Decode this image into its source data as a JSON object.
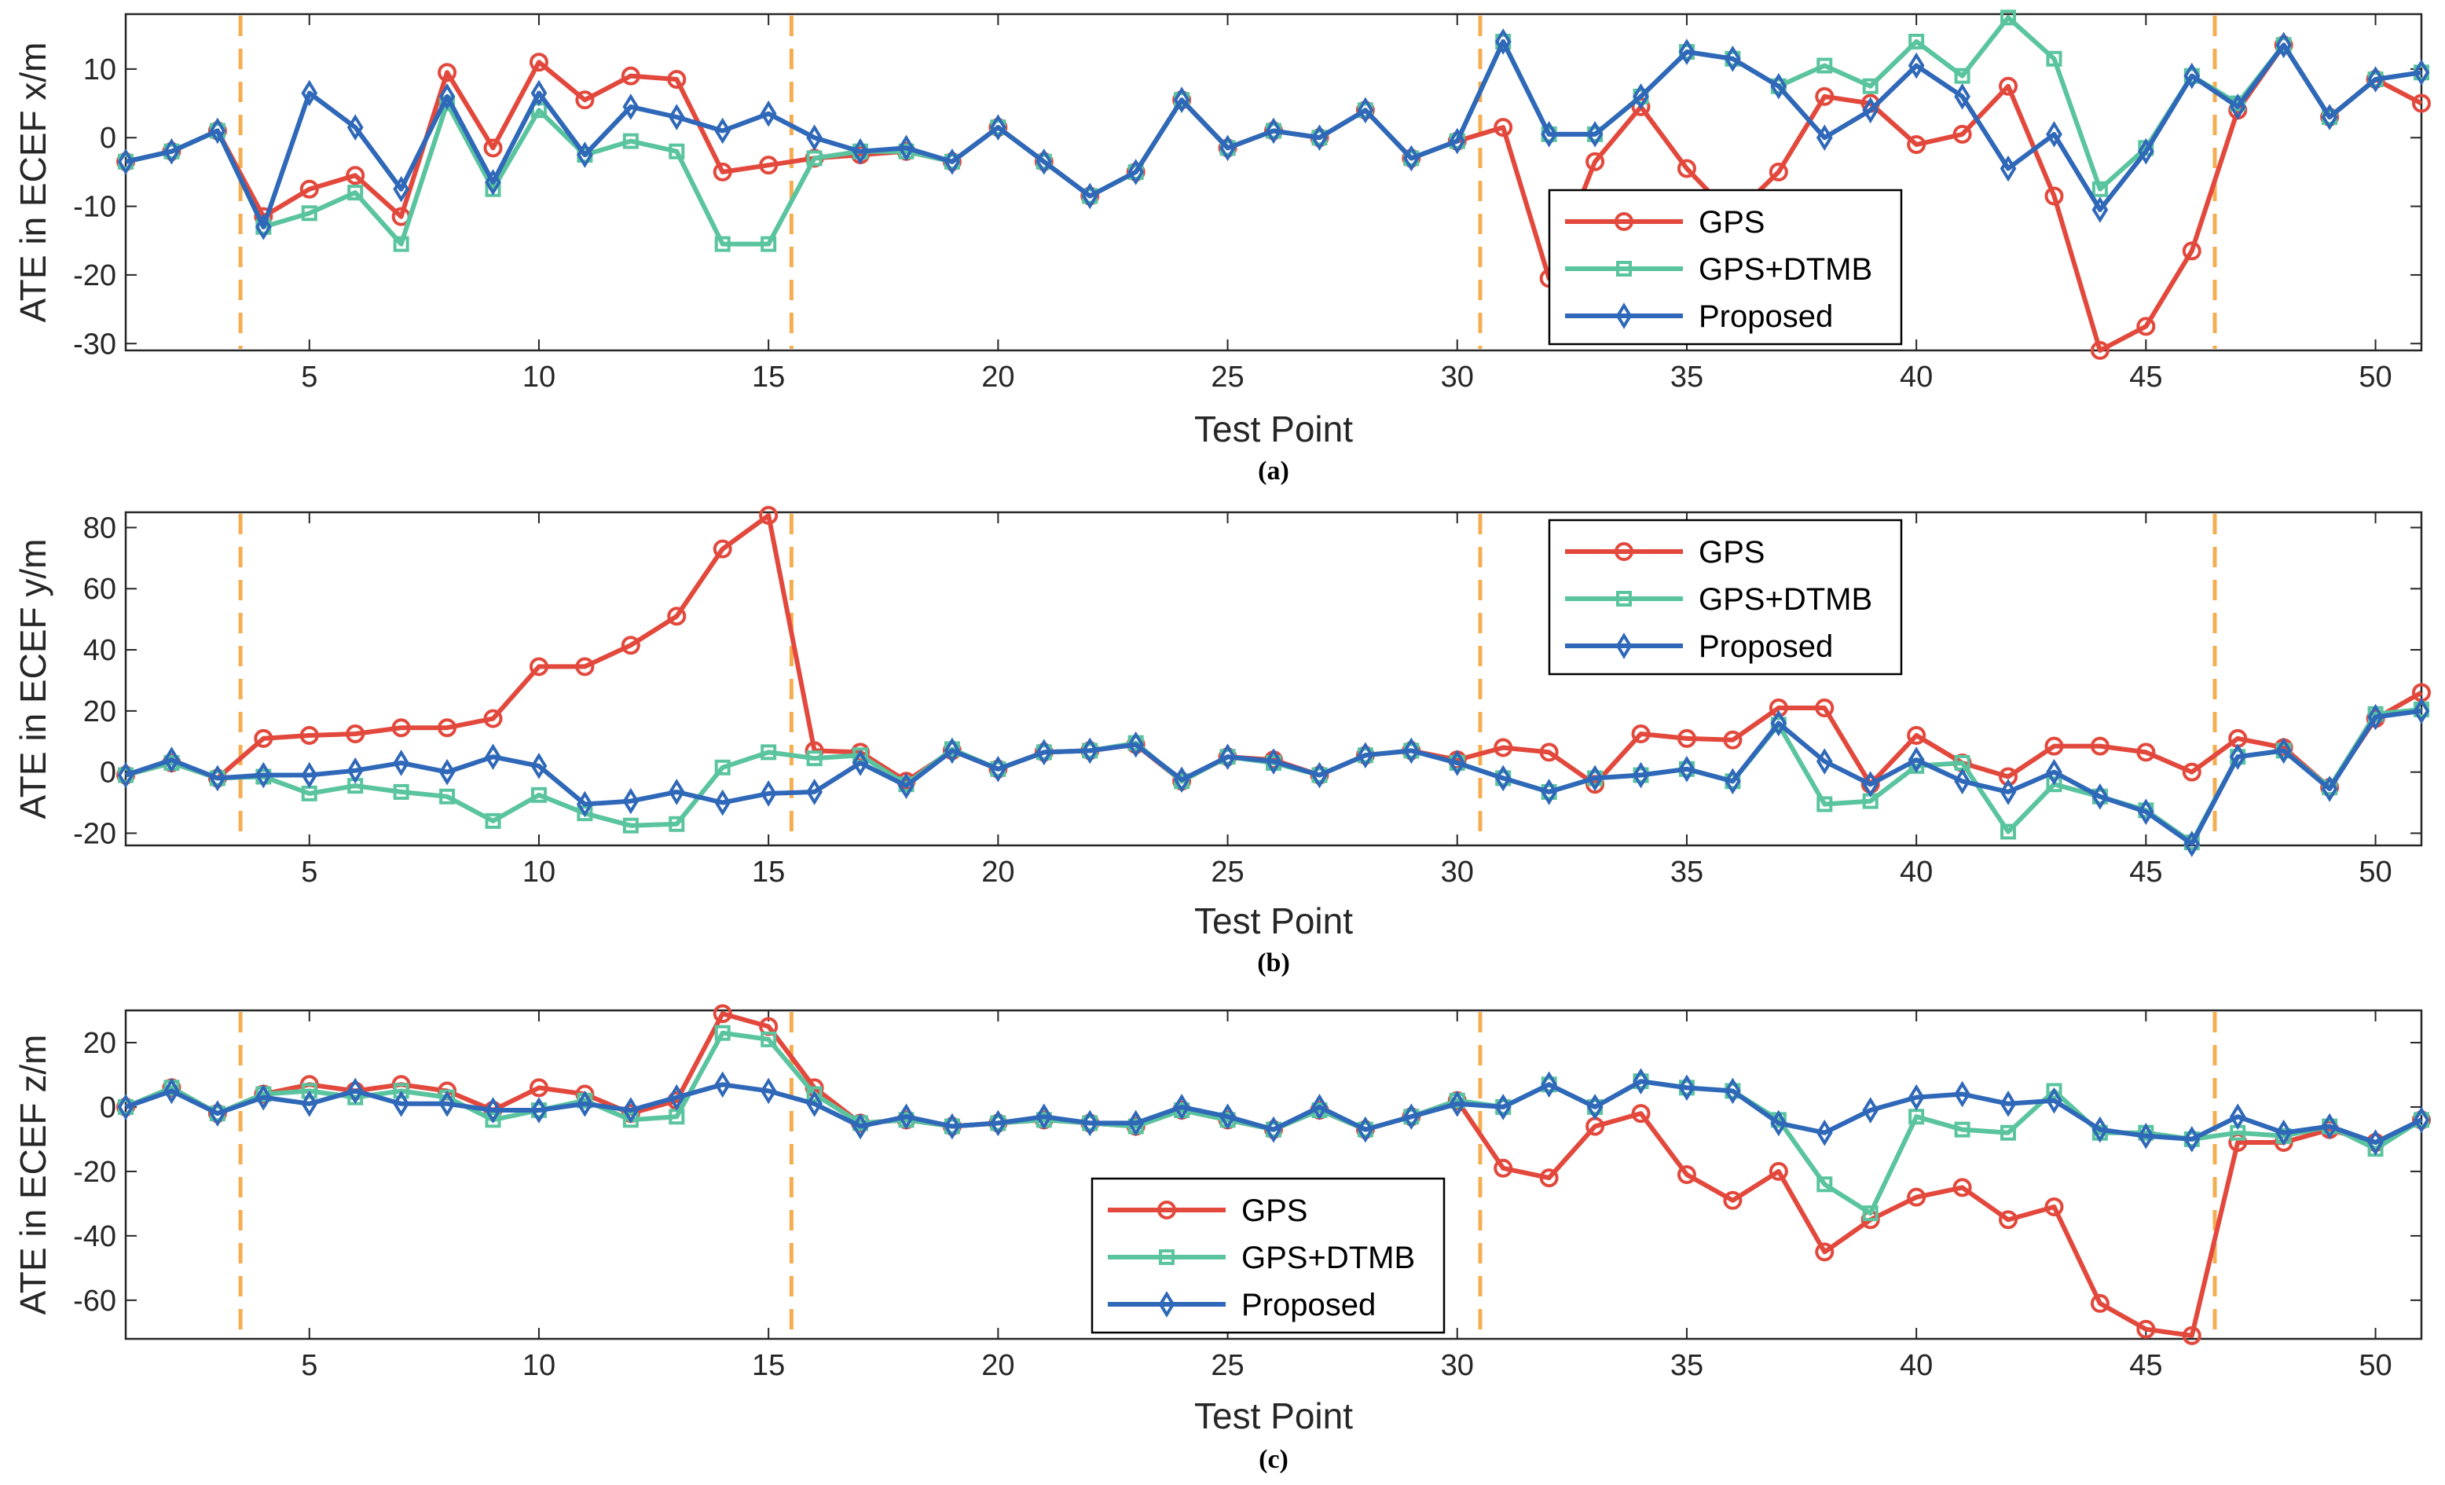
{
  "chart_data": [
    {
      "type": "line",
      "panel_label": "(a)",
      "xlabel": "Test Point",
      "ylabel": "ATE in ECEF x/m",
      "xlim": [
        1,
        51
      ],
      "ylim": [
        -31,
        18
      ],
      "xticks": [
        5,
        10,
        15,
        20,
        25,
        30,
        35,
        40,
        45,
        50
      ],
      "yticks": [
        -30,
        -20,
        -10,
        0,
        10
      ],
      "legend_position": "center-right",
      "x": [
        1,
        2,
        3,
        4,
        5,
        6,
        7,
        8,
        9,
        10,
        11,
        12,
        13,
        14,
        15,
        16,
        17,
        18,
        19,
        20,
        21,
        22,
        23,
        24,
        25,
        26,
        27,
        28,
        29,
        30,
        31,
        32,
        33,
        34,
        35,
        36,
        37,
        38,
        39,
        40,
        41,
        42,
        43,
        44,
        45,
        46,
        47,
        48,
        49,
        50,
        51
      ],
      "series": [
        {
          "name": "GPS",
          "color": "#e2483c",
          "marker": "circle",
          "values": [
            -3.5,
            -2,
            1,
            -11.5,
            -7.5,
            -5.5,
            -11.5,
            9.5,
            -1.5,
            11,
            5.5,
            9,
            8.5,
            -5,
            -4,
            -3,
            -2.5,
            -2,
            -3.5,
            1.5,
            -3.5,
            -8.5,
            -5,
            5.5,
            -1.5,
            1,
            0,
            4,
            -3,
            -0.5,
            1.5,
            -20.5,
            -3.5,
            4.5,
            -4.5,
            -11.5,
            -5,
            6,
            5,
            -1,
            0.5,
            7.5,
            -8.5,
            -31,
            -27.5,
            -16.5,
            4,
            13.5,
            3,
            8.5,
            5
          ]
        },
        {
          "name": "GPS+DTMB",
          "color": "#5ac49f",
          "marker": "square",
          "values": [
            -3.5,
            -2,
            1,
            -13,
            -11,
            -8,
            -15.5,
            5,
            -7.5,
            4,
            -2.5,
            -0.5,
            -2,
            -15.5,
            -15.5,
            -3,
            -2,
            -2,
            -3.5,
            1.5,
            -3.5,
            -8.5,
            -5,
            5.5,
            -1.5,
            1,
            0,
            4,
            -3,
            -0.5,
            14,
            0.5,
            0.5,
            6,
            12.5,
            11.5,
            7.5,
            10.5,
            7.5,
            14,
            9,
            17.5,
            11.5,
            -7.5,
            -1.5,
            9,
            5,
            13.5,
            3,
            8.5,
            9.5
          ]
        },
        {
          "name": "Proposed",
          "color": "#2f68b8",
          "marker": "diamond",
          "values": [
            -3.5,
            -2,
            1,
            -13,
            6.5,
            1.5,
            -7.5,
            6,
            -6.5,
            6.5,
            -2.5,
            4.5,
            3,
            1,
            3.5,
            0,
            -2,
            -1.5,
            -3.5,
            1.5,
            -3.5,
            -8.5,
            -5,
            5.5,
            -1.5,
            1,
            0,
            4,
            -3,
            -0.5,
            14,
            0.5,
            0.5,
            6,
            12.5,
            11.5,
            7.5,
            0,
            4,
            10.5,
            6,
            -4.5,
            0.5,
            -10.5,
            -2,
            9,
            4.5,
            13.5,
            3,
            8.5,
            9.5
          ]
        }
      ]
    },
    {
      "type": "line",
      "panel_label": "(b)",
      "xlabel": "Test Point",
      "ylabel": "ATE in ECEF y/m",
      "xlim": [
        1,
        51
      ],
      "ylim": [
        -24,
        85
      ],
      "xticks": [
        5,
        10,
        15,
        20,
        25,
        30,
        35,
        40,
        45,
        50
      ],
      "yticks": [
        -20,
        0,
        20,
        40,
        60,
        80
      ],
      "legend_position": "top-right",
      "x": [
        1,
        2,
        3,
        4,
        5,
        6,
        7,
        8,
        9,
        10,
        11,
        12,
        13,
        14,
        15,
        16,
        17,
        18,
        19,
        20,
        21,
        22,
        23,
        24,
        25,
        26,
        27,
        28,
        29,
        30,
        31,
        32,
        33,
        34,
        35,
        36,
        37,
        38,
        39,
        40,
        41,
        42,
        43,
        44,
        45,
        46,
        47,
        48,
        49,
        50,
        51
      ],
      "series": [
        {
          "name": "GPS",
          "color": "#e2483c",
          "marker": "circle",
          "values": [
            -1,
            3,
            -2,
            11,
            12,
            12.5,
            14.5,
            14.5,
            17.5,
            34.5,
            34.5,
            41.5,
            51,
            73,
            84,
            7,
            6.5,
            -3,
            7,
            1,
            6.5,
            7,
            9,
            -3,
            5,
            4,
            -1,
            5.5,
            7,
            4,
            8,
            6.5,
            -4,
            12.5,
            11,
            10.5,
            21,
            21,
            -4,
            12,
            3,
            -1.5,
            8.5,
            8.5,
            6.5,
            0,
            11,
            8,
            -5,
            17.5,
            26
          ]
        },
        {
          "name": "GPS+DTMB",
          "color": "#5ac49f",
          "marker": "square",
          "values": [
            -1,
            3,
            -2,
            -1.5,
            -7,
            -4.5,
            -6.5,
            -8,
            -16,
            -7.5,
            -13.5,
            -17.5,
            -17,
            1.5,
            6.5,
            4.5,
            5.5,
            -4,
            7.5,
            1,
            6.5,
            7,
            9.5,
            -3,
            5,
            3,
            -1,
            5.5,
            7,
            3,
            -2,
            -6.5,
            -2,
            -1,
            1,
            -3,
            15.5,
            -10.5,
            -9.5,
            2,
            3,
            -19.5,
            -4,
            -8,
            -12.5,
            -23,
            5,
            7,
            -5,
            19,
            20.5
          ]
        },
        {
          "name": "Proposed",
          "color": "#2f68b8",
          "marker": "diamond",
          "values": [
            -1,
            4,
            -2,
            -1,
            -1,
            0.5,
            3,
            0,
            5,
            2,
            -10.5,
            -9.5,
            -6.5,
            -10,
            -7,
            -6.5,
            3,
            -4.5,
            7,
            1,
            6.5,
            7,
            9,
            -2.5,
            5,
            3.5,
            -1,
            5.5,
            7,
            3,
            -2,
            -6.5,
            -2,
            -1,
            1,
            -3,
            16,
            3.5,
            -4,
            4,
            -3,
            -6.5,
            0,
            -8,
            -13,
            -23.5,
            5,
            7,
            -5.5,
            18,
            20
          ]
        }
      ]
    },
    {
      "type": "line",
      "panel_label": "(c)",
      "xlabel": "Test Point",
      "ylabel": "ATE in ECEF z/m",
      "xlim": [
        1,
        51
      ],
      "ylim": [
        -72,
        30
      ],
      "xticks": [
        5,
        10,
        15,
        20,
        25,
        30,
        35,
        40,
        45,
        50
      ],
      "yticks": [
        -60,
        -40,
        -20,
        0,
        20
      ],
      "legend_position": "center",
      "x": [
        1,
        2,
        3,
        4,
        5,
        6,
        7,
        8,
        9,
        10,
        11,
        12,
        13,
        14,
        15,
        16,
        17,
        18,
        19,
        20,
        21,
        22,
        23,
        24,
        25,
        26,
        27,
        28,
        29,
        30,
        31,
        32,
        33,
        34,
        35,
        36,
        37,
        38,
        39,
        40,
        41,
        42,
        43,
        44,
        45,
        46,
        47,
        48,
        49,
        50,
        51
      ],
      "series": [
        {
          "name": "GPS",
          "color": "#e2483c",
          "marker": "circle",
          "values": [
            0,
            6,
            -2,
            4,
            7,
            5,
            7,
            5,
            -1,
            6,
            4,
            -2,
            2,
            29,
            25,
            6,
            -5,
            -4,
            -6,
            -5,
            -4,
            -5,
            -6,
            -1,
            -4,
            -7,
            -1,
            -7,
            -3,
            2,
            -19,
            -22,
            -6,
            -2,
            -21,
            -29,
            -20,
            -45,
            -35,
            -28,
            -25,
            -35,
            -31,
            -61,
            -69,
            -71,
            -11,
            -11,
            -7,
            -11,
            -4
          ]
        },
        {
          "name": "GPS+DTMB",
          "color": "#5ac49f",
          "marker": "square",
          "values": [
            0,
            6,
            -2,
            4,
            5,
            3,
            5,
            3,
            -4,
            -1,
            2,
            -4,
            -3,
            23,
            21,
            4,
            -5,
            -4,
            -6,
            -5,
            -4,
            -5,
            -6,
            -1,
            -4,
            -7,
            -1,
            -7,
            -3,
            2,
            0,
            7,
            0,
            8,
            6,
            5,
            -4,
            -24,
            -33,
            -3,
            -7,
            -8,
            5,
            -8,
            -8,
            -10,
            -8,
            -9,
            -6,
            -13,
            -4
          ]
        },
        {
          "name": "Proposed",
          "color": "#2f68b8",
          "marker": "diamond",
          "values": [
            0,
            5,
            -2,
            3,
            1,
            5,
            1,
            1,
            -1,
            -1,
            1,
            -1,
            3,
            7,
            5,
            1,
            -6,
            -3,
            -6,
            -5,
            -3,
            -5,
            -5,
            0,
            -3,
            -7,
            0,
            -7,
            -3,
            1,
            0,
            7,
            0,
            8,
            6,
            5,
            -5,
            -8,
            -1,
            3,
            4,
            1,
            2,
            -7,
            -9,
            -10,
            -3,
            -8,
            -6,
            -11,
            -4
          ]
        }
      ]
    }
  ]
}
